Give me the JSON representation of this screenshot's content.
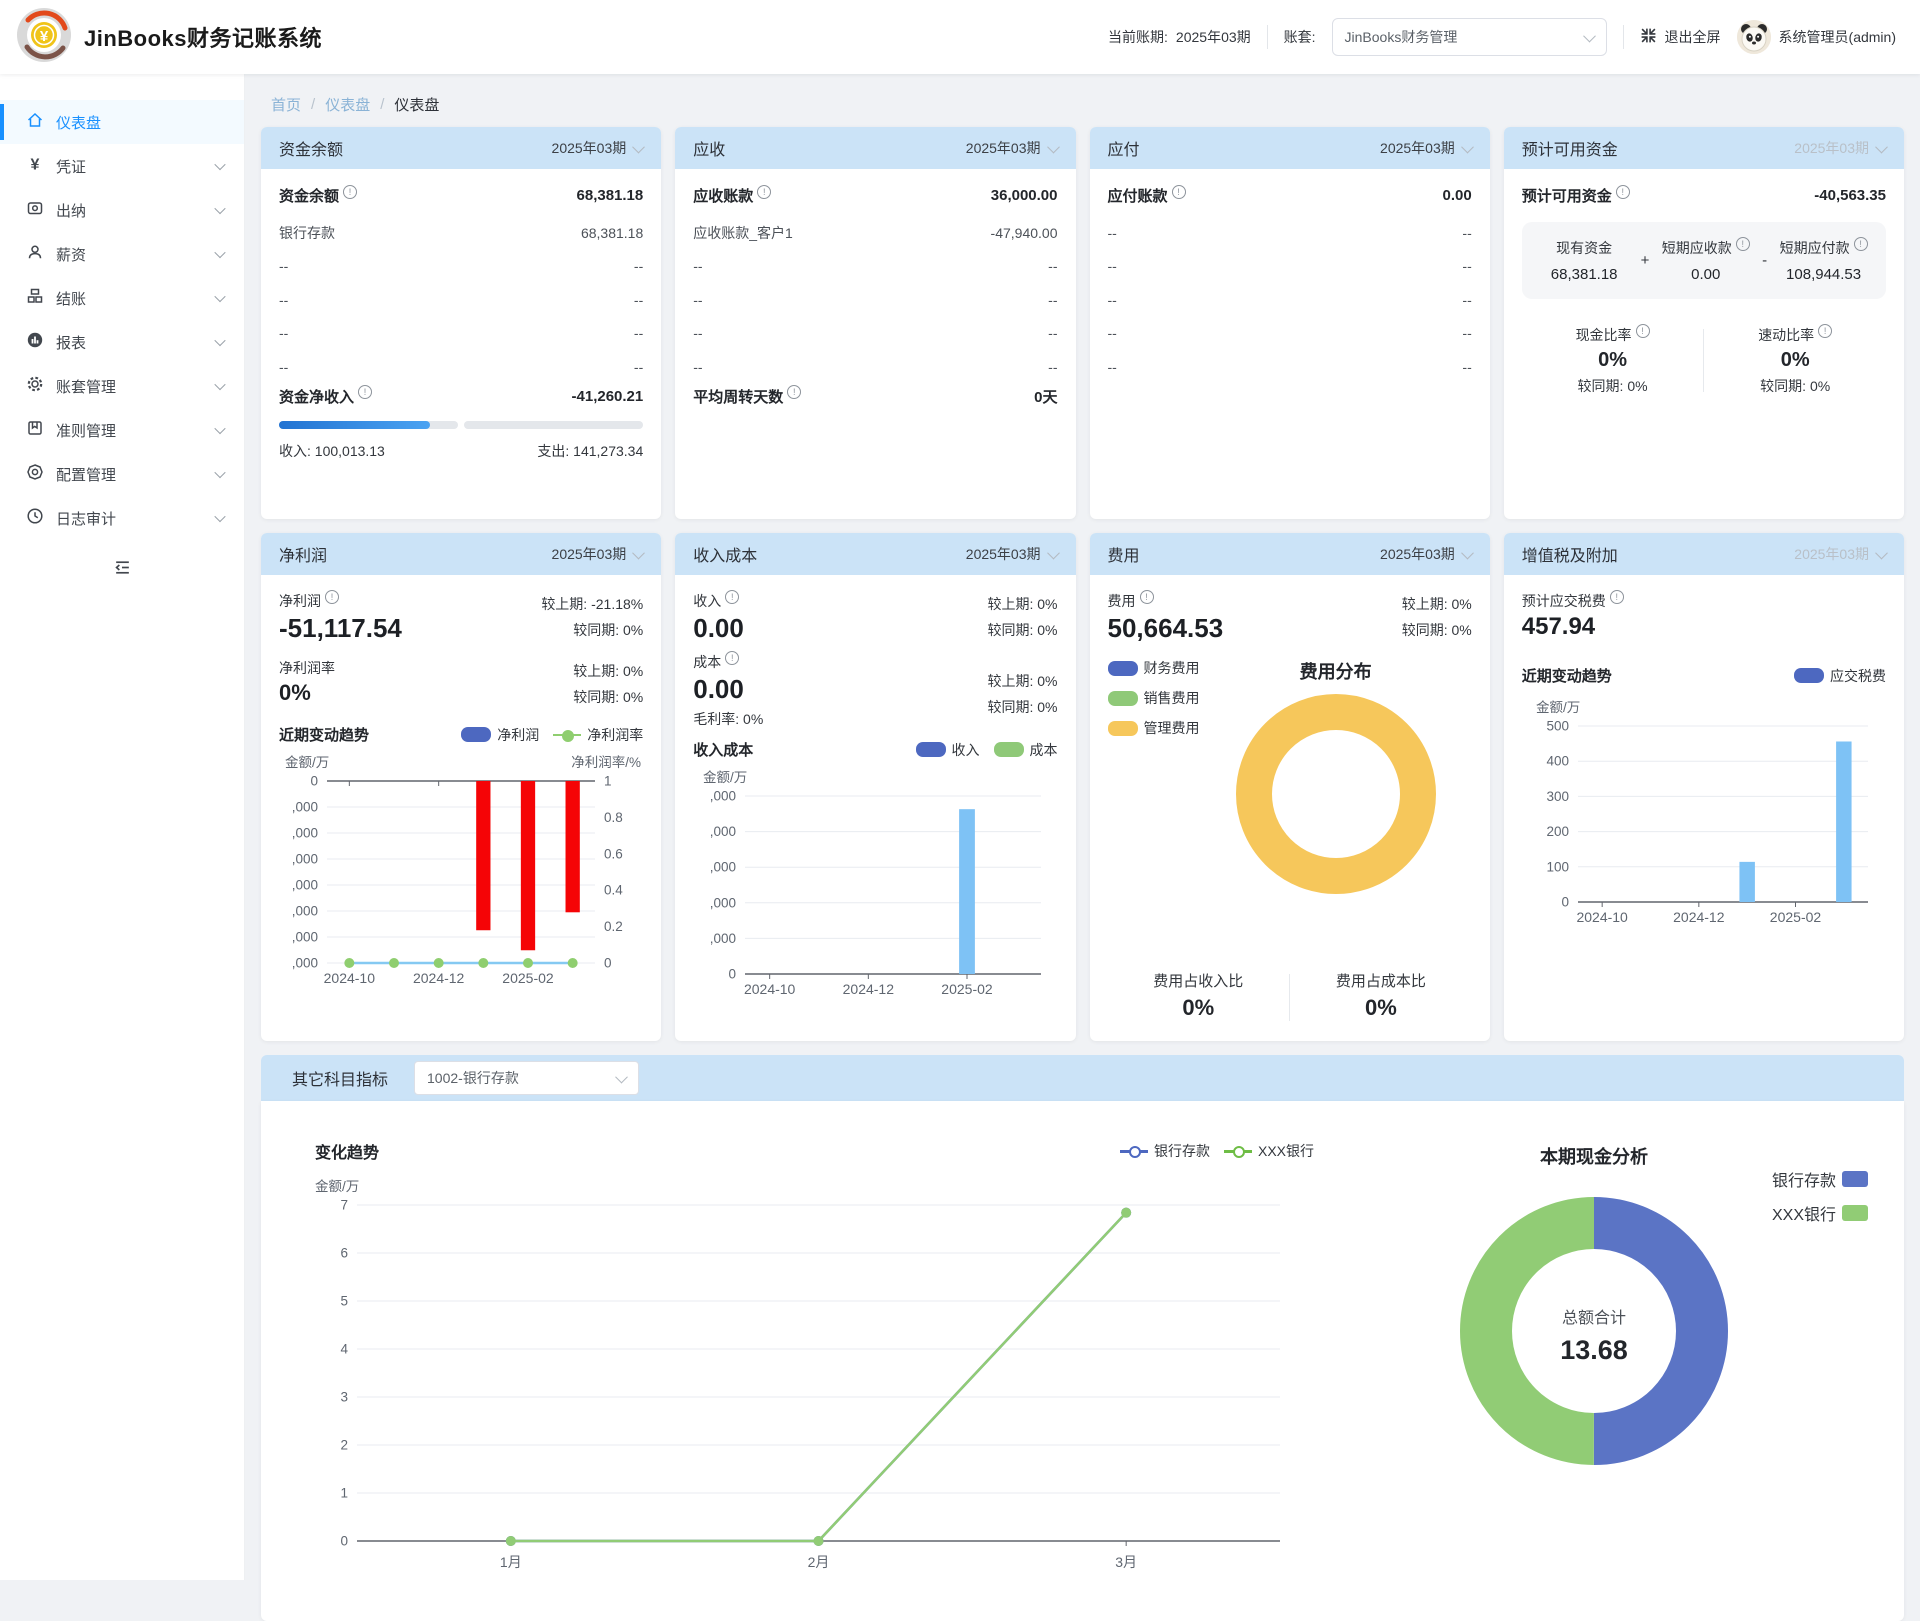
{
  "app": {
    "title": "JinBooks财务记账系统"
  },
  "header": {
    "period_label": "当前账期:",
    "period_value": "2025年03期",
    "account_set_label": "账套:",
    "account_set_value": "JinBooks财务管理",
    "exit_fullscreen": "退出全屏",
    "user_name": "系统管理员(admin)"
  },
  "sidebar": {
    "items": [
      {
        "key": "dashboard",
        "label": "仪表盘"
      },
      {
        "key": "voucher",
        "label": "凭证"
      },
      {
        "key": "cashier",
        "label": "出纳"
      },
      {
        "key": "payroll",
        "label": "薪资"
      },
      {
        "key": "closing",
        "label": "结账"
      },
      {
        "key": "reports",
        "label": "报表"
      },
      {
        "key": "account-set",
        "label": "账套管理"
      },
      {
        "key": "standards",
        "label": "准则管理"
      },
      {
        "key": "config",
        "label": "配置管理"
      },
      {
        "key": "audit-log",
        "label": "日志审计"
      }
    ]
  },
  "breadcrumb": {
    "items": [
      "首页",
      "仪表盘",
      "仪表盘"
    ]
  },
  "cards": {
    "funds": {
      "header": "资金余额",
      "period": "2025年03期",
      "main_label": "资金余额",
      "main_value": "68,381.18",
      "rows": [
        {
          "label": "银行存款",
          "value": "68,381.18"
        },
        {
          "label": "--",
          "value": "--"
        },
        {
          "label": "--",
          "value": "--"
        },
        {
          "label": "--",
          "value": "--"
        },
        {
          "label": "--",
          "value": "--"
        }
      ],
      "net_label": "资金净收入",
      "net_value": "-41,260.21",
      "progress_pct": 41.45,
      "income_text": "收入: 100,013.13",
      "expense_text": "支出: 141,273.34"
    },
    "receivable": {
      "header": "应收",
      "period": "2025年03期",
      "main_label": "应收账款",
      "main_value": "36,000.00",
      "rows": [
        {
          "label": "应收账款_客户1",
          "value": "-47,940.00"
        },
        {
          "label": "--",
          "value": "--"
        },
        {
          "label": "--",
          "value": "--"
        },
        {
          "label": "--",
          "value": "--"
        },
        {
          "label": "--",
          "value": "--"
        }
      ],
      "days_label": "平均周转天数",
      "days_value": "0天"
    },
    "payable": {
      "header": "应付",
      "period": "2025年03期",
      "main_label": "应付账款",
      "main_value": "0.00",
      "rows": [
        {
          "label": "--",
          "value": "--"
        },
        {
          "label": "--",
          "value": "--"
        },
        {
          "label": "--",
          "value": "--"
        },
        {
          "label": "--",
          "value": "--"
        },
        {
          "label": "--",
          "value": "--"
        }
      ]
    },
    "available": {
      "header": "预计可用资金",
      "period": "2025年03期",
      "main_label": "预计可用资金",
      "main_value": "-40,563.35",
      "formula_items": [
        {
          "label": "现有资金",
          "value": "68,381.18"
        },
        {
          "label": "短期应收款",
          "value": "0.00"
        },
        {
          "label": "短期应付款",
          "value": "108,944.53"
        }
      ],
      "formula_op1": "+",
      "formula_op2": "-",
      "ratios": [
        {
          "label": "现金比率",
          "value": "0%",
          "compare": "较同期: 0%"
        },
        {
          "label": "速动比率",
          "value": "0%",
          "compare": "较同期: 0%"
        }
      ]
    },
    "net_profit": {
      "header": "净利润",
      "period": "2025年03期",
      "metric1_label": "净利润",
      "metric1_value": "-51,117.54",
      "metric1_cmp1": "较上期: -21.18%",
      "metric1_cmp2": "较同期: 0%",
      "metric2_label": "净利润率",
      "metric2_value": "0%",
      "metric2_cmp1": "较上期: 0%",
      "metric2_cmp2": "较同期: 0%",
      "trend_title": "近期变动趋势",
      "legend": [
        {
          "label": "净利润",
          "color": "#4d68c0",
          "type": "bar"
        },
        {
          "label": "净利润率",
          "color": "#91cc75",
          "type": "line"
        }
      ]
    },
    "income_cost": {
      "header": "收入成本",
      "period": "2025年03期",
      "metric1_label": "收入",
      "metric1_value": "0.00",
      "metric1_cmp1": "较上期: 0%",
      "metric1_cmp2": "较同期: 0%",
      "metric2_label": "成本",
      "metric2_value": "0.00",
      "metric2_sub": "毛利率: 0%",
      "metric2_cmp1": "较上期: 0%",
      "metric2_cmp2": "较同期: 0%",
      "trend_title": "收入成本",
      "legend": [
        {
          "label": "收入",
          "color": "#4d68c0"
        },
        {
          "label": "成本",
          "color": "#8fc978"
        }
      ]
    },
    "expense": {
      "header": "费用",
      "period": "2025年03期",
      "metric_label": "费用",
      "metric_value": "50,664.53",
      "cmp1": "较上期: 0%",
      "cmp2": "较同期: 0%",
      "legend": [
        {
          "label": "财务费用",
          "color": "#4d68c0"
        },
        {
          "label": "销售费用",
          "color": "#8fc978"
        },
        {
          "label": "管理费用",
          "color": "#f6c75b"
        }
      ],
      "donut_title": "费用分布",
      "footer": [
        {
          "label": "费用占收入比",
          "value": "0%"
        },
        {
          "label": "费用占成本比",
          "value": "0%"
        }
      ]
    },
    "vat": {
      "header": "增值税及附加",
      "period": "2025年03期",
      "metric_label": "预计应交税费",
      "metric_value": "457.94",
      "trend_title": "近期变动趋势",
      "legend": [
        {
          "label": "应交税费",
          "color": "#4d68c0"
        }
      ]
    }
  },
  "other_subjects": {
    "bar_title": "其它科目指标",
    "select_value": "1002-银行存款",
    "trend_title": "变化趋势",
    "trend_legend": [
      {
        "label": "银行存款",
        "color": "#4d68c0"
      },
      {
        "label": "XXX银行",
        "color": "#6ebd45"
      }
    ],
    "donut_title": "本期现金分析",
    "donut_legend": [
      {
        "label": "银行存款",
        "color": "#5b74c5"
      },
      {
        "label": "XXX银行",
        "color": "#91cc75"
      }
    ],
    "center_label": "总额合计",
    "center_value": "13.68"
  },
  "chart_data": [
    {
      "id": "netprofit-trend",
      "type": "bar-line",
      "title": "近期变动趋势",
      "unit_left": "金额/万",
      "unit_right": "净利润率/%",
      "categories": [
        "2024-10",
        "2024-11",
        "2024-12",
        "2025-01",
        "2025-02",
        "2025-03"
      ],
      "x_labels": [
        "2024-10",
        "",
        "2024-12",
        "",
        "2025-02",
        ""
      ],
      "left_ticks": [
        "0",
        ",000",
        ",000",
        ",000",
        ",000",
        ",000",
        ",000",
        ",000"
      ],
      "right_ticks": [
        "1",
        "0.8",
        "0.6",
        "0.4",
        "0.2",
        "0"
      ],
      "ylim": [
        -7000,
        0
      ],
      "axis": "top",
      "bar_series": {
        "name": "净利润",
        "color": "#f50406",
        "values": [
          null,
          null,
          null,
          -5740,
          -6510,
          -5050
        ]
      },
      "line_series": [
        {
          "name": "净利润率",
          "color": "#85c9f2",
          "marker_color": "#8fce6f",
          "ylim": [
            0,
            1
          ],
          "values": [
            0,
            0,
            0,
            0,
            0,
            0
          ]
        }
      ]
    },
    {
      "id": "income-cost",
      "type": "bar-line",
      "title": "收入成本",
      "unit_left": "金额/万",
      "categories": [
        "2024-10",
        "2024-11",
        "2024-12",
        "2025-01",
        "2025-02",
        "2025-03"
      ],
      "x_labels": [
        "2024-10",
        "",
        "2024-12",
        "",
        "2025-02",
        ""
      ],
      "left_ticks": [
        ",000",
        ",000",
        ",000",
        ",000",
        ",000",
        "0"
      ],
      "ylim": [
        0,
        5000
      ],
      "axis": "bottom",
      "bar_series": {
        "name": "收入",
        "color": "#7ec2f5",
        "values": [
          null,
          null,
          null,
          null,
          4630,
          null
        ]
      }
    },
    {
      "id": "vat-trend",
      "type": "bar-line",
      "title": "近期变动趋势",
      "unit_left": "金额/万",
      "categories": [
        "2024-10",
        "2024-11",
        "2024-12",
        "2025-01",
        "2025-02",
        "2025-03"
      ],
      "x_labels": [
        "2024-10",
        "",
        "2024-12",
        "",
        "2025-02",
        ""
      ],
      "left_ticks": [
        "500",
        "400",
        "300",
        "200",
        "100",
        "0"
      ],
      "ylim": [
        0,
        500
      ],
      "axis": "bottom",
      "bar_series": {
        "name": "应交税费",
        "color": "#7ec2f5",
        "values": [
          null,
          null,
          null,
          114,
          null,
          456
        ]
      }
    },
    {
      "id": "expense-donut",
      "type": "donut",
      "title": "费用分布",
      "slices": [
        {
          "label": "财务费用",
          "value": 0,
          "color": "#4d68c0"
        },
        {
          "label": "销售费用",
          "value": 0,
          "color": "#8fc978"
        },
        {
          "label": "管理费用",
          "value": 50664.53,
          "color": "#f6c75b"
        }
      ]
    },
    {
      "id": "subject-trend",
      "type": "bar-line",
      "title": "变化趋势",
      "unit_left": "金额/万",
      "categories": [
        "1月",
        "2月",
        "3月"
      ],
      "x_labels": [
        "1月",
        "2月",
        "3月"
      ],
      "left_ticks": [
        "7",
        "6",
        "5",
        "4",
        "3",
        "2",
        "1",
        "0"
      ],
      "ylim": [
        0,
        7
      ],
      "axis": "bottom",
      "line_series": [
        {
          "name": "银行存款",
          "color": "#4d68c0",
          "marker_color": "#4d68c0",
          "ylim": [
            0,
            7
          ],
          "values": [
            0,
            0,
            6.84
          ]
        },
        {
          "name": "XXX银行",
          "color": "#91cc75",
          "marker_color": "#91cc75",
          "ylim": [
            0,
            7
          ],
          "values": [
            0,
            0,
            6.84
          ]
        }
      ]
    },
    {
      "id": "cash-donut",
      "type": "donut",
      "title": "本期现金分析",
      "center_label": "总额合计",
      "center_value": "13.68",
      "slices": [
        {
          "label": "银行存款",
          "value": 6.84,
          "color": "#5b74c5"
        },
        {
          "label": "XXX银行",
          "value": 6.84,
          "color": "#91cc75"
        }
      ]
    }
  ]
}
